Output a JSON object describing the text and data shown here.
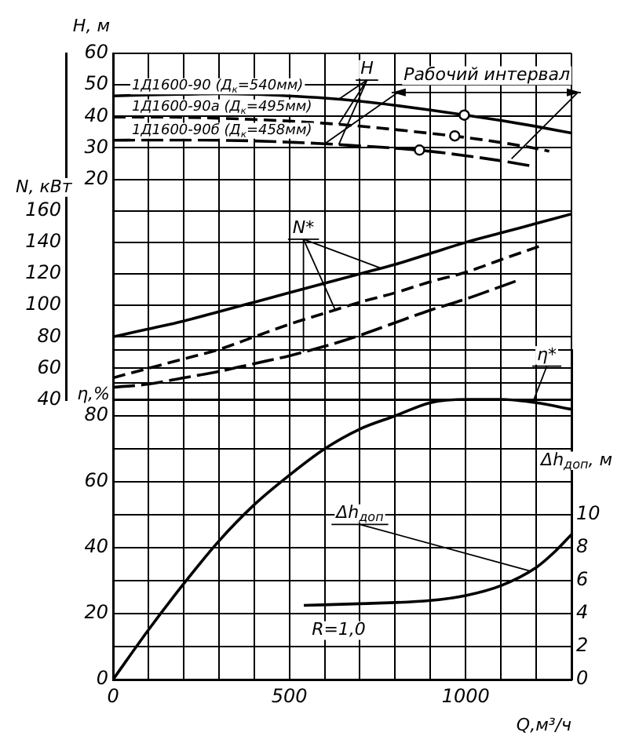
{
  "chart_data": [
    {
      "type": "line",
      "ylabel": "H, м",
      "y2label": "N, кВт",
      "tick_labels": "y",
      "annotations": [
        {
          "text": "H",
          "x": 640,
          "y": 37.5
        },
        {
          "text": "Рабочий интервал",
          "x": 600,
          "y": 31.3
        },
        {
          "text": "N*",
          "x": 630,
          "y": -21.4
        }
      ],
      "xlim": [
        0,
        1300
      ],
      "xticks": [
        0,
        {
          "value": 100,
          "label": null
        },
        {
          "value": 200,
          "label": null
        },
        {
          "value": 300,
          "label": null
        },
        {
          "value": 400,
          "label": null
        },
        500,
        {
          "value": 600,
          "label": null
        },
        {
          "value": 700,
          "label": null
        },
        {
          "value": 800,
          "label": null
        },
        {
          "value": 900,
          "label": null
        },
        1000,
        {
          "value": 1100,
          "label": null
        },
        {
          "value": 1200,
          "label": null
        },
        {
          "value": 1300,
          "label": null
        }
      ],
      "ylim": [
        -50,
        60
      ],
      "yticks": [
        {
          "value": -50,
          "label": null
        },
        {
          "value": -40,
          "label": null
        },
        {
          "value": -30,
          "label": null
        },
        {
          "value": -20,
          "label": null
        },
        {
          "value": -10,
          "label": null
        },
        {
          "value": 0,
          "label": null
        },
        {
          "value": 10,
          "label": null
        },
        20,
        30,
        40,
        50,
        60
      ],
      "y2lim": [
        40,
        260
      ],
      "y2ticks": [
        40,
        60,
        80,
        100,
        120,
        140,
        160
      ],
      "grid": true,
      "legend": false,
      "marker": "none",
      "series": [
        {
          "name": "1Д1600-90 (Д$_{к}$=540мм)",
          "color": "#000000",
          "line_style": "solid",
          "axis": "y",
          "x": [
            0,
            100,
            200,
            300,
            400,
            500,
            600,
            700,
            800,
            900,
            1000,
            1100,
            1200,
            1300
          ],
          "values": [
            46.5,
            46.8,
            47,
            47.2,
            47,
            46.5,
            45.8,
            44.8,
            43.5,
            42,
            40.4,
            38.7,
            36.8,
            34.7
          ]
        },
        {
          "name": "1Д1600-90а (Д$_{к}$=495мм)",
          "color": "#000000",
          "line_style": "dashed",
          "axis": "y",
          "x": [
            0,
            100,
            200,
            300,
            400,
            500,
            600,
            700,
            800,
            900,
            1000,
            1100,
            1200,
            1237
          ],
          "values": [
            39.8,
            39.8,
            39.7,
            39.4,
            39,
            38.5,
            37.8,
            36.9,
            35.8,
            34.6,
            33.3,
            31.7,
            29.8,
            28.9
          ]
        },
        {
          "name": "1Д1600-90б (Д$_{к}$=458мм)",
          "color": "#000000",
          "line_style": "dashed",
          "axis": "y",
          "x": [
            0,
            100,
            200,
            300,
            400,
            500,
            600,
            700,
            800,
            900,
            1000,
            1100,
            1200
          ],
          "values": [
            32.4,
            32.5,
            32.5,
            32.4,
            32.2,
            31.8,
            31.3,
            30.6,
            29.9,
            28.9,
            27.5,
            25.9,
            24
          ]
        },
        {
          "color": "#000000",
          "line_style": "solid",
          "axis": "y2",
          "x": [
            0,
            100,
            200,
            300,
            400,
            500,
            600,
            700,
            800,
            900,
            1000,
            1100,
            1200,
            1300
          ],
          "values": [
            80,
            85,
            90,
            96,
            102,
            108,
            114,
            120,
            126,
            133,
            140,
            146,
            152,
            158
          ]
        },
        {
          "color": "#000000",
          "line_style": "dashed",
          "axis": "y2",
          "x": [
            0,
            100,
            200,
            300,
            400,
            500,
            600,
            700,
            800,
            900,
            1000,
            1100,
            1215
          ],
          "values": [
            54,
            60,
            66,
            72,
            80,
            88,
            95,
            102,
            108,
            115,
            121,
            129,
            138
          ]
        },
        {
          "color": "#000000",
          "line_style": "dashed",
          "axis": "y2",
          "x": [
            0,
            100,
            200,
            300,
            400,
            500,
            600,
            700,
            800,
            900,
            1000,
            1100,
            1150
          ],
          "values": [
            48,
            50,
            54,
            58,
            63,
            68,
            74,
            81,
            89,
            97,
            104,
            112,
            116
          ]
        },
        {
          "type": "scatter",
          "color": "#000000",
          "marker": "circle",
          "axis": "y",
          "x": [
            996,
            969,
            869
          ],
          "values": [
            40.4,
            33.8,
            29.3
          ]
        }
      ]
    },
    {
      "type": "line",
      "xlabel": "Q,м³/ч",
      "ylabel": "η,%",
      "y2label": "Δh$_{доп}$, м",
      "annotations": [
        {
          "text": "η*",
          "x": 1190,
          "y": 84
        },
        {
          "text": "Δh$_{доп}$",
          "x": 1180,
          "y": 33
        },
        "R=1,0"
      ],
      "xlim": [
        0,
        1300
      ],
      "xticks": [
        0,
        {
          "value": 100,
          "label": null
        },
        {
          "value": 200,
          "label": null
        },
        {
          "value": 300,
          "label": null
        },
        {
          "value": 400,
          "label": null
        },
        500,
        {
          "value": 600,
          "label": null
        },
        {
          "value": 700,
          "label": null
        },
        {
          "value": 800,
          "label": null
        },
        {
          "value": 900,
          "label": null
        },
        1000,
        {
          "value": 1100,
          "label": null
        },
        {
          "value": 1200,
          "label": null
        },
        {
          "value": 1300,
          "label": null
        }
      ],
      "ylim": [
        0,
        100
      ],
      "yticks": [
        0,
        {
          "value": 10,
          "label": null
        },
        20,
        {
          "value": 30,
          "label": null
        },
        40,
        {
          "value": 50,
          "label": null
        },
        60,
        {
          "value": 70,
          "label": null
        },
        80,
        {
          "value": 90,
          "label": null
        },
        {
          "value": 100,
          "label": null
        }
      ],
      "y2lim": [
        0,
        20
      ],
      "y2ticks": [
        0,
        2,
        4,
        6,
        8,
        10
      ],
      "grid": true,
      "legend": false,
      "marker": "none",
      "series": [
        {
          "color": "#000000",
          "line_style": "solid",
          "axis": "y",
          "x": [
            0,
            100,
            200,
            300,
            400,
            500,
            600,
            700,
            800,
            900,
            1000,
            1100,
            1200,
            1300
          ],
          "values": [
            0,
            15,
            29,
            42,
            53,
            62,
            70,
            76,
            80,
            84,
            85,
            85,
            84,
            82
          ]
        },
        {
          "color": "#000000",
          "line_style": "solid",
          "axis": "y2",
          "x": [
            541,
            700,
            900,
            1000,
            1100,
            1200,
            1250,
            1300
          ],
          "values": [
            4.5,
            4.6,
            4.8,
            5.1,
            5.7,
            6.8,
            7.7,
            8.8
          ]
        }
      ]
    }
  ]
}
